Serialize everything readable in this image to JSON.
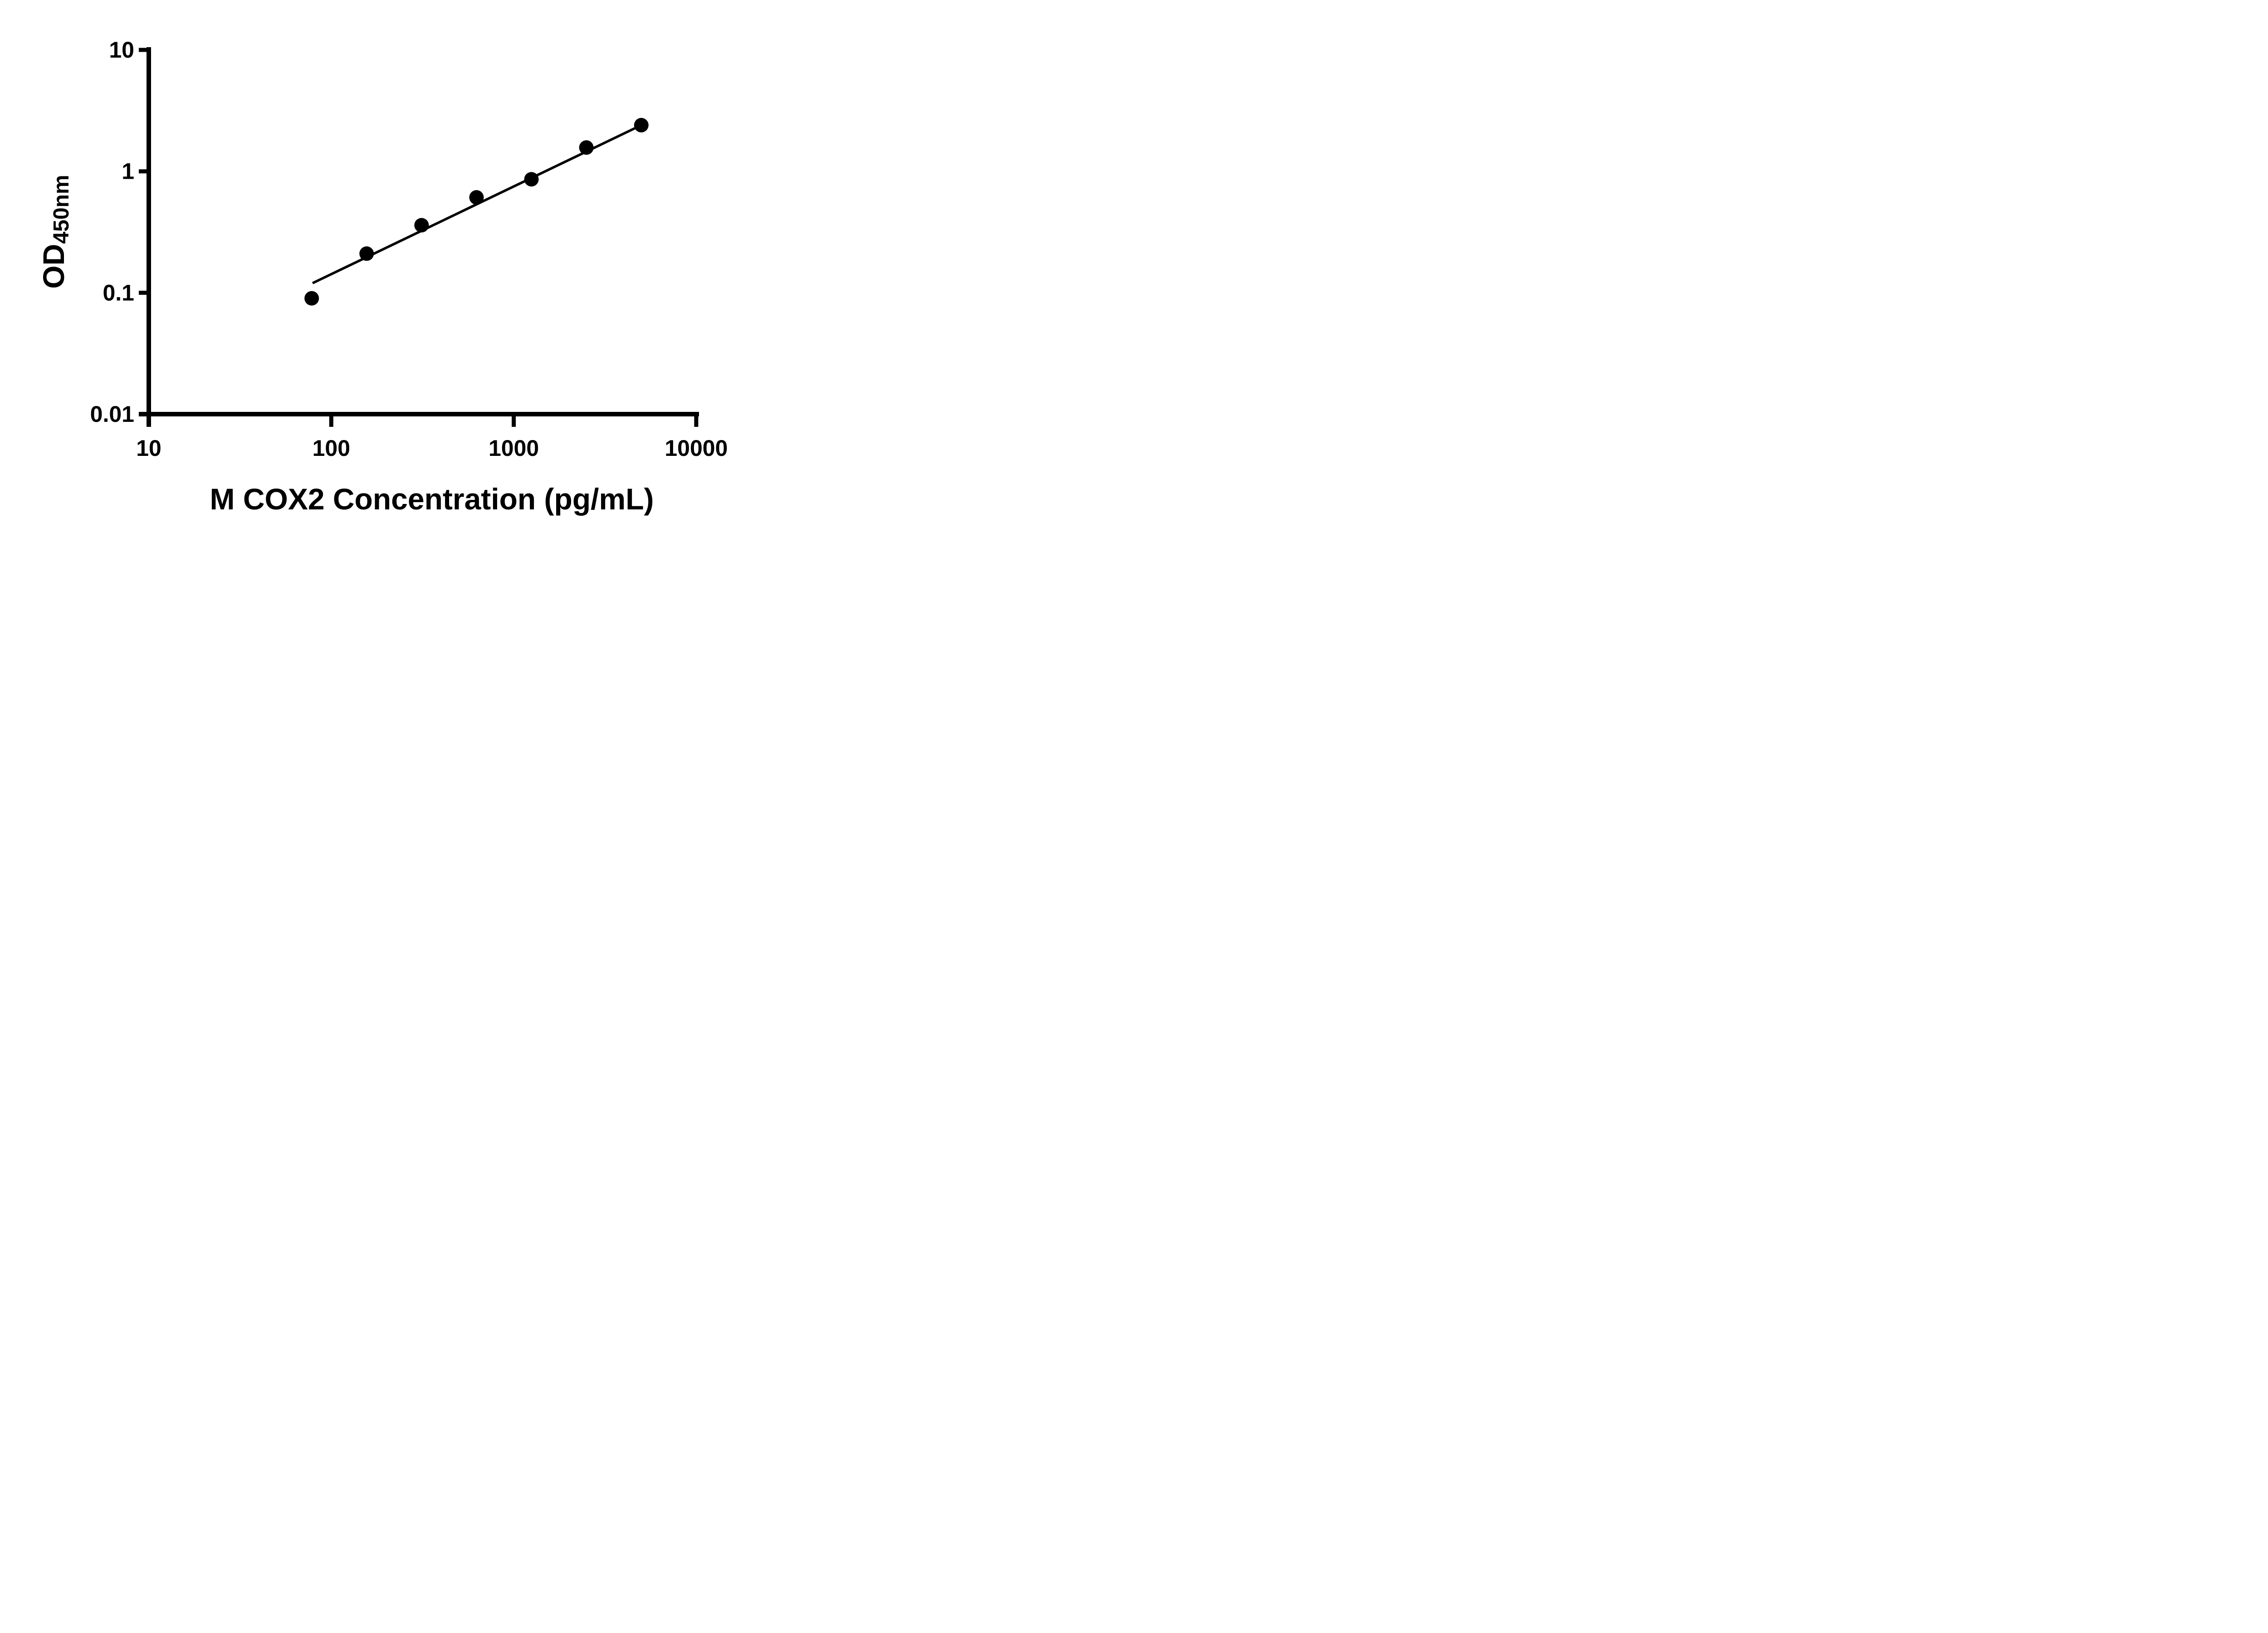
{
  "figure": {
    "background_color": "#ffffff",
    "foreground_color": "#000000"
  },
  "chart_data": {
    "type": "scatter",
    "title": "",
    "xlabel": "M COX2 Concentration (pg/mL)",
    "ylabel_main": "OD",
    "ylabel_sub": "450nm",
    "x_scale": "log",
    "y_scale": "log",
    "xlim": [
      10,
      10000
    ],
    "ylim": [
      0.01,
      10
    ],
    "x_ticks": [
      10,
      100,
      1000,
      10000
    ],
    "x_tick_labels": [
      "10",
      "100",
      "1000",
      "10000"
    ],
    "y_ticks": [
      10,
      1,
      0.1,
      0.01
    ],
    "y_tick_labels": [
      "10",
      "1",
      "0.1",
      "0.01"
    ],
    "grid": false,
    "legend": false,
    "marker_color": "#000000",
    "line_color": "#000000",
    "series": [
      {
        "name": "standard-points",
        "type": "scatter",
        "x": [
          78.125,
          156.25,
          312.5,
          625,
          1250,
          2500,
          5000
        ],
        "y": [
          0.09,
          0.21,
          0.36,
          0.61,
          0.86,
          1.57,
          2.4
        ]
      },
      {
        "name": "fit-line",
        "type": "line",
        "x": [
          79,
          5000
        ],
        "y": [
          0.12,
          2.4
        ]
      }
    ]
  }
}
